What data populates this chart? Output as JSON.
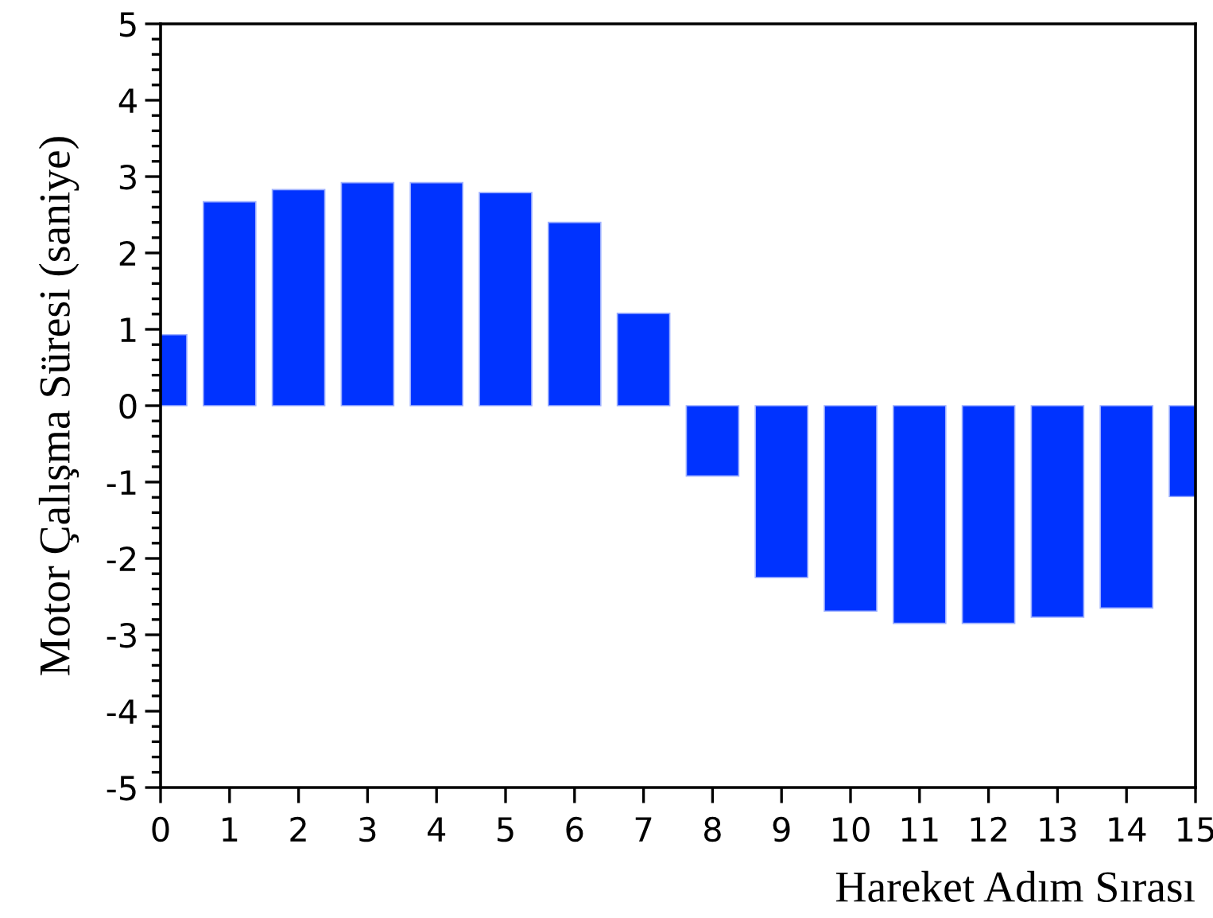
{
  "chart_data": {
    "type": "bar",
    "xlabel": "Hareket Adım Sırası",
    "ylabel": "Motor Çalışma Süresi (saniye)",
    "x": [
      0,
      1,
      2,
      3,
      4,
      5,
      6,
      7,
      8,
      9,
      10,
      11,
      12,
      13,
      14,
      15
    ],
    "series": [
      {
        "color": "#0033ff",
        "values": [
          0.93,
          2.67,
          2.83,
          2.92,
          2.92,
          2.79,
          2.4,
          1.21,
          -0.92,
          -2.25,
          -2.69,
          -2.85,
          -2.85,
          -2.77,
          -2.65,
          -1.19
        ]
      }
    ],
    "xlim": [
      0,
      15
    ],
    "xticks": [
      0,
      1,
      2,
      3,
      4,
      5,
      6,
      7,
      8,
      9,
      10,
      11,
      12,
      13,
      14,
      15
    ],
    "ylim": [
      -5,
      5
    ],
    "yticks": [
      -5,
      -4,
      -3,
      -2,
      -1,
      0,
      1,
      2,
      3,
      4,
      5
    ],
    "grid": false,
    "legend": false
  }
}
